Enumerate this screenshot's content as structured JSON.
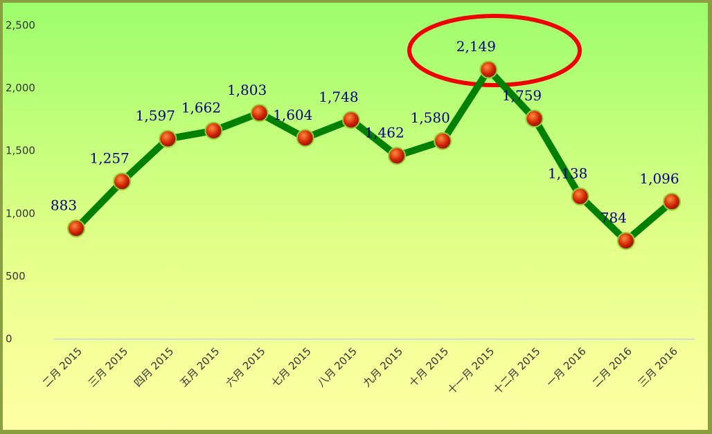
{
  "chart_data": {
    "type": "line",
    "categories": [
      "二月 2015",
      "三月 2015",
      "四月 2015",
      "五月 2015",
      "六月 2015",
      "七月 2015",
      "八月 2015",
      "九月 2015",
      "十月 2015",
      "十一月 2015",
      "十二月 2015",
      "一月 2016",
      "二月 2016",
      "三月 2016"
    ],
    "values": [
      883,
      1257,
      1597,
      1662,
      1803,
      1604,
      1748,
      1462,
      1580,
      2149,
      1759,
      1138,
      784,
      1096
    ],
    "value_labels": [
      "883",
      "1,257",
      "1,597",
      "1,662",
      "1,803",
      "1,604",
      "1,748",
      "1,462",
      "1,580",
      "2,149",
      "1,759",
      "1,138",
      "784",
      "1,096"
    ],
    "color": "#008000",
    "marker_color": "#cc2200",
    "ylim": [
      0,
      2500
    ],
    "yticks": [
      0,
      500,
      {
        "value": 1000,
        "label": "1,000"
      },
      {
        "value": 1500,
        "label": "1,500"
      },
      {
        "value": 2000,
        "label": "2,000"
      },
      {
        "value": 2500,
        "label": "2,500"
      }
    ],
    "grid": false
  }
}
